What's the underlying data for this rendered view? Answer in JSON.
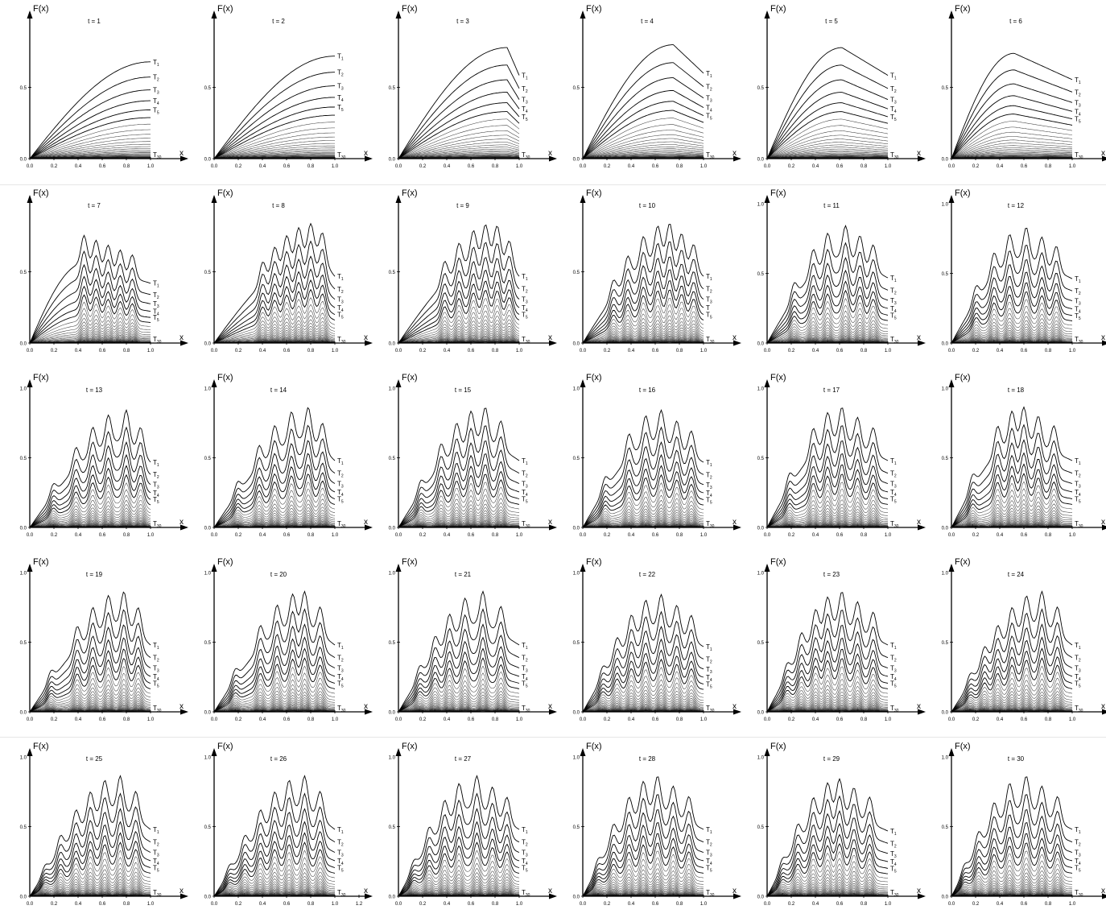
{
  "figure": {
    "rows": 5,
    "cols": 6,
    "ylabel": "F(x)",
    "xlabel": "x",
    "yticks": [
      "0.0",
      "0.5"
    ],
    "ytop_label": "1.0",
    "xticks": [
      "0.0",
      "0.2",
      "0.4",
      "0.6",
      "0.8",
      "1.0"
    ],
    "xticks_panel_26": [
      "0.0",
      "0.2",
      "0.4",
      "0.6",
      "0.8",
      "1.0",
      "1.2"
    ],
    "curve_labels": [
      "T1",
      "T2",
      "T3",
      "T4",
      "T5",
      "T30"
    ],
    "curve_labels_panel_10": [
      "T1",
      "T2",
      "T3",
      "T",
      "T5",
      "T30"
    ],
    "colors": {
      "line": "#000000",
      "background": "#ffffff"
    }
  },
  "chart_data": [
    {
      "type": "line",
      "title": "t = 1",
      "xlabel": "x",
      "ylabel": "F(x)",
      "xlim": [
        0,
        1.0
      ],
      "ylim": [
        0,
        0.85
      ],
      "curves": 30,
      "series_labels": [
        "T1",
        "T2",
        "T3",
        "T4",
        "T5",
        "T30"
      ],
      "T1_peak": {
        "x": 1.0,
        "y": 0.68
      },
      "peaks_x": []
    },
    {
      "type": "line",
      "title": "t = 2",
      "xlabel": "x",
      "ylabel": "F(x)",
      "xlim": [
        0,
        1.0
      ],
      "ylim": [
        0,
        0.85
      ],
      "curves": 30,
      "series_labels": [
        "T1",
        "T2",
        "T3",
        "T4",
        "T5",
        "T30"
      ],
      "T1_peak": {
        "x": 1.0,
        "y": 0.72
      },
      "peaks_x": []
    },
    {
      "type": "line",
      "title": "t = 3",
      "xlabel": "x",
      "ylabel": "F(x)",
      "xlim": [
        0,
        1.0
      ],
      "ylim": [
        0,
        0.85
      ],
      "curves": 30,
      "series_labels": [
        "T1",
        "T2",
        "T3",
        "T4",
        "T5",
        "T30"
      ],
      "T1_peak": {
        "x": 0.9,
        "y": 0.78
      },
      "peaks_x": []
    },
    {
      "type": "line",
      "title": "t = 4",
      "xlabel": "x",
      "ylabel": "F(x)",
      "xlim": [
        0,
        1.0
      ],
      "ylim": [
        0,
        0.85
      ],
      "curves": 30,
      "series_labels": [
        "T1",
        "T2",
        "T3",
        "T4",
        "T5",
        "T30"
      ],
      "T1_peak": {
        "x": 0.75,
        "y": 0.8
      },
      "peaks_x": []
    },
    {
      "type": "line",
      "title": "t = 5",
      "xlabel": "x",
      "ylabel": "F(x)",
      "xlim": [
        0,
        1.0
      ],
      "ylim": [
        0,
        0.85
      ],
      "curves": 30,
      "series_labels": [
        "T1",
        "T2",
        "T3",
        "T4",
        "T5",
        "T30"
      ],
      "T1_peak": {
        "x": 0.62,
        "y": 0.78
      },
      "peaks_x": []
    },
    {
      "type": "line",
      "title": "t = 6",
      "xlabel": "x",
      "ylabel": "F(x)",
      "xlim": [
        0,
        1.0
      ],
      "ylim": [
        0,
        0.85
      ],
      "curves": 30,
      "series_labels": [
        "T1",
        "T2",
        "T3",
        "T4",
        "T5",
        "T30"
      ],
      "T1_peak": {
        "x": 0.52,
        "y": 0.74
      },
      "peaks_x": []
    },
    {
      "type": "line",
      "title": "t = 7",
      "xlabel": "x",
      "ylabel": "F(x)",
      "xlim": [
        0,
        1.0
      ],
      "ylim": [
        0,
        0.85
      ],
      "curves": 30,
      "series_labels": [
        "T1",
        "T2",
        "T3",
        "T4",
        "T5",
        "T30"
      ],
      "T1_peak": {
        "x": 0.45,
        "y": 0.7
      },
      "peaks_x": [
        0.45,
        0.55,
        0.65,
        0.75,
        0.85
      ]
    },
    {
      "type": "line",
      "title": "t = 8",
      "xlabel": "x",
      "ylabel": "F(x)",
      "xlim": [
        0,
        1.0
      ],
      "ylim": [
        0,
        0.85
      ],
      "curves": 30,
      "series_labels": [
        "T1",
        "T2",
        "T3",
        "T4",
        "T5",
        "T30"
      ],
      "T1_peak": {
        "x": 0.85,
        "y": 0.78
      },
      "peaks_x": [
        0.4,
        0.5,
        0.6,
        0.7,
        0.8,
        0.9
      ]
    },
    {
      "type": "line",
      "title": "t = 9",
      "xlabel": "x",
      "ylabel": "F(x)",
      "xlim": [
        0,
        1.0
      ],
      "ylim": [
        0,
        0.85
      ],
      "curves": 30,
      "series_labels": [
        "T1",
        "T2",
        "T3",
        "T4",
        "T5",
        "T30"
      ],
      "T1_peak": {
        "x": 0.8,
        "y": 0.78
      },
      "peaks_x": [
        0.38,
        0.5,
        0.62,
        0.72,
        0.82,
        0.92
      ]
    },
    {
      "type": "line",
      "title": "t = 10",
      "xlabel": "x",
      "ylabel": "F(x)",
      "xlim": [
        0,
        1.0
      ],
      "ylim": [
        0,
        0.85
      ],
      "curves": 30,
      "series_labels": [
        "T1",
        "T2",
        "T3",
        "T",
        "T5",
        "T30"
      ],
      "T1_peak": {
        "x": 0.72,
        "y": 0.78
      },
      "peaks_x": [
        0.25,
        0.37,
        0.5,
        0.62,
        0.72,
        0.82,
        0.92
      ]
    },
    {
      "type": "line",
      "title": "t = 11",
      "xlabel": "x",
      "ylabel": "F(x)",
      "xlim": [
        0,
        1.0
      ],
      "ylim": [
        0,
        1.0
      ],
      "curves": 30,
      "series_labels": [
        "T1",
        "T2",
        "T3",
        "T4",
        "T5",
        "T30"
      ],
      "T1_peak": {
        "x": 0.65,
        "y": 0.78
      },
      "peaks_x": [
        0.22,
        0.38,
        0.5,
        0.65,
        0.77,
        0.88
      ]
    },
    {
      "type": "line",
      "title": "t = 12",
      "xlabel": "x",
      "ylabel": "F(x)",
      "xlim": [
        0,
        1.0
      ],
      "ylim": [
        0,
        1.0
      ],
      "curves": 30,
      "series_labels": [
        "T1",
        "T2",
        "T3",
        "T4",
        "T5",
        "T30"
      ],
      "T1_peak": {
        "x": 0.62,
        "y": 0.77
      },
      "peaks_x": [
        0.2,
        0.35,
        0.48,
        0.62,
        0.75,
        0.87
      ]
    },
    {
      "type": "line",
      "title": "t = 13",
      "xlabel": "x",
      "ylabel": "F(x)",
      "xlim": [
        0,
        1.0
      ],
      "ylim": [
        0,
        1.0
      ],
      "curves": 30,
      "series_labels": [
        "T1",
        "T2",
        "T3",
        "T4",
        "T5",
        "T30"
      ],
      "T1_peak": {
        "x": 0.8,
        "y": 0.78
      },
      "peaks_x": [
        0.19,
        0.38,
        0.52,
        0.65,
        0.8,
        0.92
      ]
    },
    {
      "type": "line",
      "title": "t = 14",
      "xlabel": "x",
      "ylabel": "F(x)",
      "xlim": [
        0,
        1.0
      ],
      "ylim": [
        0,
        1.0
      ],
      "curves": 30,
      "series_labels": [
        "T1",
        "T2",
        "T3",
        "T4",
        "T5",
        "T30"
      ],
      "T1_peak": {
        "x": 0.78,
        "y": 0.8
      },
      "peaks_x": [
        0.19,
        0.37,
        0.5,
        0.64,
        0.78,
        0.9
      ]
    },
    {
      "type": "line",
      "title": "t = 15",
      "xlabel": "x",
      "ylabel": "F(x)",
      "xlim": [
        0,
        1.0
      ],
      "ylim": [
        0,
        1.0
      ],
      "curves": 30,
      "series_labels": [
        "T1",
        "T2",
        "T3",
        "T4",
        "T5",
        "T30"
      ],
      "T1_peak": {
        "x": 0.72,
        "y": 0.8
      },
      "peaks_x": [
        0.18,
        0.35,
        0.48,
        0.6,
        0.72,
        0.85
      ]
    },
    {
      "type": "line",
      "title": "t = 16",
      "xlabel": "x",
      "ylabel": "F(x)",
      "xlim": [
        0,
        1.0
      ],
      "ylim": [
        0,
        1.0
      ],
      "curves": 30,
      "series_labels": [
        "T1",
        "T2",
        "T3",
        "T4",
        "T5",
        "T30"
      ],
      "T1_peak": {
        "x": 0.65,
        "y": 0.78
      },
      "peaks_x": [
        0.18,
        0.38,
        0.52,
        0.65,
        0.78,
        0.9
      ]
    },
    {
      "type": "line",
      "title": "t = 17",
      "xlabel": "x",
      "ylabel": "F(x)",
      "xlim": [
        0,
        1.0
      ],
      "ylim": [
        0,
        1.0
      ],
      "curves": 30,
      "series_labels": [
        "T1",
        "T2",
        "T3",
        "T4",
        "T5",
        "T30"
      ],
      "T1_peak": {
        "x": 0.62,
        "y": 0.8
      },
      "peaks_x": [
        0.18,
        0.38,
        0.5,
        0.62,
        0.75,
        0.88
      ]
    },
    {
      "type": "line",
      "title": "t = 18",
      "xlabel": "x",
      "ylabel": "F(x)",
      "xlim": [
        0,
        1.0
      ],
      "ylim": [
        0,
        1.0
      ],
      "curves": 30,
      "series_labels": [
        "T1",
        "T2",
        "T3",
        "T4",
        "T5",
        "T30"
      ],
      "T1_peak": {
        "x": 0.6,
        "y": 0.8
      },
      "peaks_x": [
        0.17,
        0.38,
        0.5,
        0.6,
        0.72,
        0.85
      ]
    },
    {
      "type": "line",
      "title": "t = 19",
      "xlabel": "x",
      "ylabel": "F(x)",
      "xlim": [
        0,
        1.0
      ],
      "ylim": [
        0,
        1.0
      ],
      "curves": 30,
      "series_labels": [
        "T1",
        "T2",
        "T3",
        "T4",
        "T5",
        "T30"
      ],
      "T1_peak": {
        "x": 0.78,
        "y": 0.8
      },
      "peaks_x": [
        0.17,
        0.39,
        0.52,
        0.65,
        0.78,
        0.9
      ]
    },
    {
      "type": "line",
      "title": "t = 20",
      "xlabel": "x",
      "ylabel": "F(x)",
      "xlim": [
        0,
        1.0
      ],
      "ylim": [
        0,
        1.0
      ],
      "curves": 30,
      "series_labels": [
        "T1",
        "T2",
        "T3",
        "T4",
        "T5",
        "T30"
      ],
      "T1_peak": {
        "x": 0.75,
        "y": 0.8
      },
      "peaks_x": [
        0.17,
        0.38,
        0.52,
        0.65,
        0.75,
        0.88
      ]
    },
    {
      "type": "line",
      "title": "t = 21",
      "xlabel": "x",
      "ylabel": "F(x)",
      "xlim": [
        0,
        1.0
      ],
      "ylim": [
        0,
        1.0
      ],
      "curves": 30,
      "series_labels": [
        "T1",
        "T2",
        "T3",
        "T4",
        "T5",
        "T30"
      ],
      "T1_peak": {
        "x": 0.7,
        "y": 0.8
      },
      "peaks_x": [
        0.17,
        0.3,
        0.42,
        0.55,
        0.7,
        0.85
      ]
    },
    {
      "type": "line",
      "title": "t = 22",
      "xlabel": "x",
      "ylabel": "F(x)",
      "xlim": [
        0,
        1.0
      ],
      "ylim": [
        0,
        1.0
      ],
      "curves": 30,
      "series_labels": [
        "T1",
        "T2",
        "T3",
        "T4",
        "T5",
        "T30"
      ],
      "T1_peak": {
        "x": 0.65,
        "y": 0.78
      },
      "peaks_x": [
        0.16,
        0.28,
        0.4,
        0.52,
        0.65,
        0.78,
        0.9
      ]
    },
    {
      "type": "line",
      "title": "t = 23",
      "xlabel": "x",
      "ylabel": "F(x)",
      "xlim": [
        0,
        1.0
      ],
      "ylim": [
        0,
        1.0
      ],
      "curves": 30,
      "series_labels": [
        "T1",
        "T2",
        "T3",
        "T4",
        "T5",
        "T30"
      ],
      "T1_peak": {
        "x": 0.62,
        "y": 0.8
      },
      "peaks_x": [
        0.16,
        0.28,
        0.4,
        0.5,
        0.62,
        0.75,
        0.88
      ]
    },
    {
      "type": "line",
      "title": "t = 24",
      "xlabel": "x",
      "ylabel": "F(x)",
      "xlim": [
        0,
        1.0
      ],
      "ylim": [
        0,
        1.0
      ],
      "curves": 30,
      "series_labels": [
        "T1",
        "T2",
        "T3",
        "T4",
        "T5",
        "T30"
      ],
      "T1_peak": {
        "x": 0.75,
        "y": 0.8
      },
      "peaks_x": [
        0.15,
        0.27,
        0.38,
        0.5,
        0.62,
        0.75,
        0.88
      ]
    },
    {
      "type": "line",
      "title": "t = 25",
      "xlabel": "x",
      "ylabel": "F(x)",
      "xlim": [
        0,
        1.0
      ],
      "ylim": [
        0,
        1.0
      ],
      "curves": 30,
      "series_labels": [
        "T1",
        "T2",
        "T3",
        "T4",
        "T5",
        "T30"
      ],
      "T1_peak": {
        "x": 0.75,
        "y": 0.8
      },
      "peaks_x": [
        0.12,
        0.25,
        0.38,
        0.5,
        0.62,
        0.75,
        0.88
      ]
    },
    {
      "type": "line",
      "title": "t = 26",
      "xlabel": "x",
      "ylabel": "F(x)",
      "xlim": [
        0,
        1.2
      ],
      "ylim": [
        0,
        1.0
      ],
      "curves": 30,
      "series_labels": [
        "T1",
        "T2",
        "T3",
        "T4",
        "T5",
        "T30"
      ],
      "T1_peak": {
        "x": 0.75,
        "y": 0.8
      },
      "peaks_x": [
        0.12,
        0.25,
        0.38,
        0.5,
        0.62,
        0.75,
        0.88
      ]
    },
    {
      "type": "line",
      "title": "t = 27",
      "xlabel": "x",
      "ylabel": "F(x)",
      "xlim": [
        0,
        1.0
      ],
      "ylim": [
        0,
        1.0
      ],
      "curves": 30,
      "series_labels": [
        "T1",
        "T2",
        "T3",
        "T4",
        "T5",
        "T30"
      ],
      "T1_peak": {
        "x": 0.65,
        "y": 0.8
      },
      "peaks_x": [
        0.12,
        0.25,
        0.38,
        0.5,
        0.65,
        0.78,
        0.9
      ]
    },
    {
      "type": "line",
      "title": "t = 28",
      "xlabel": "x",
      "ylabel": "F(x)",
      "xlim": [
        0,
        1.0
      ],
      "ylim": [
        0,
        1.0
      ],
      "curves": 30,
      "series_labels": [
        "T1",
        "T2",
        "T3",
        "T4",
        "T5",
        "T30"
      ],
      "T1_peak": {
        "x": 0.62,
        "y": 0.8
      },
      "peaks_x": [
        0.12,
        0.25,
        0.38,
        0.5,
        0.62,
        0.75,
        0.88
      ]
    },
    {
      "type": "line",
      "title": "t = 29",
      "xlabel": "x",
      "ylabel": "F(x)",
      "xlim": [
        0,
        1.0
      ],
      "ylim": [
        0,
        1.0
      ],
      "curves": 30,
      "series_labels": [
        "T1",
        "T2",
        "T3",
        "T4",
        "T5",
        "T30"
      ],
      "T1_peak": {
        "x": 0.6,
        "y": 0.78
      },
      "peaks_x": [
        0.12,
        0.25,
        0.38,
        0.5,
        0.6,
        0.72,
        0.85
      ]
    },
    {
      "type": "line",
      "title": "t = 30",
      "xlabel": "x",
      "ylabel": "F(x)",
      "xlim": [
        0,
        1.0
      ],
      "ylim": [
        0,
        1.0
      ],
      "curves": 30,
      "series_labels": [
        "T1",
        "T2",
        "T3",
        "T4",
        "T5",
        "T30"
      ],
      "T1_peak": {
        "x": 0.62,
        "y": 0.8
      },
      "peaks_x": [
        0.1,
        0.22,
        0.35,
        0.48,
        0.62,
        0.75,
        0.88
      ]
    }
  ]
}
